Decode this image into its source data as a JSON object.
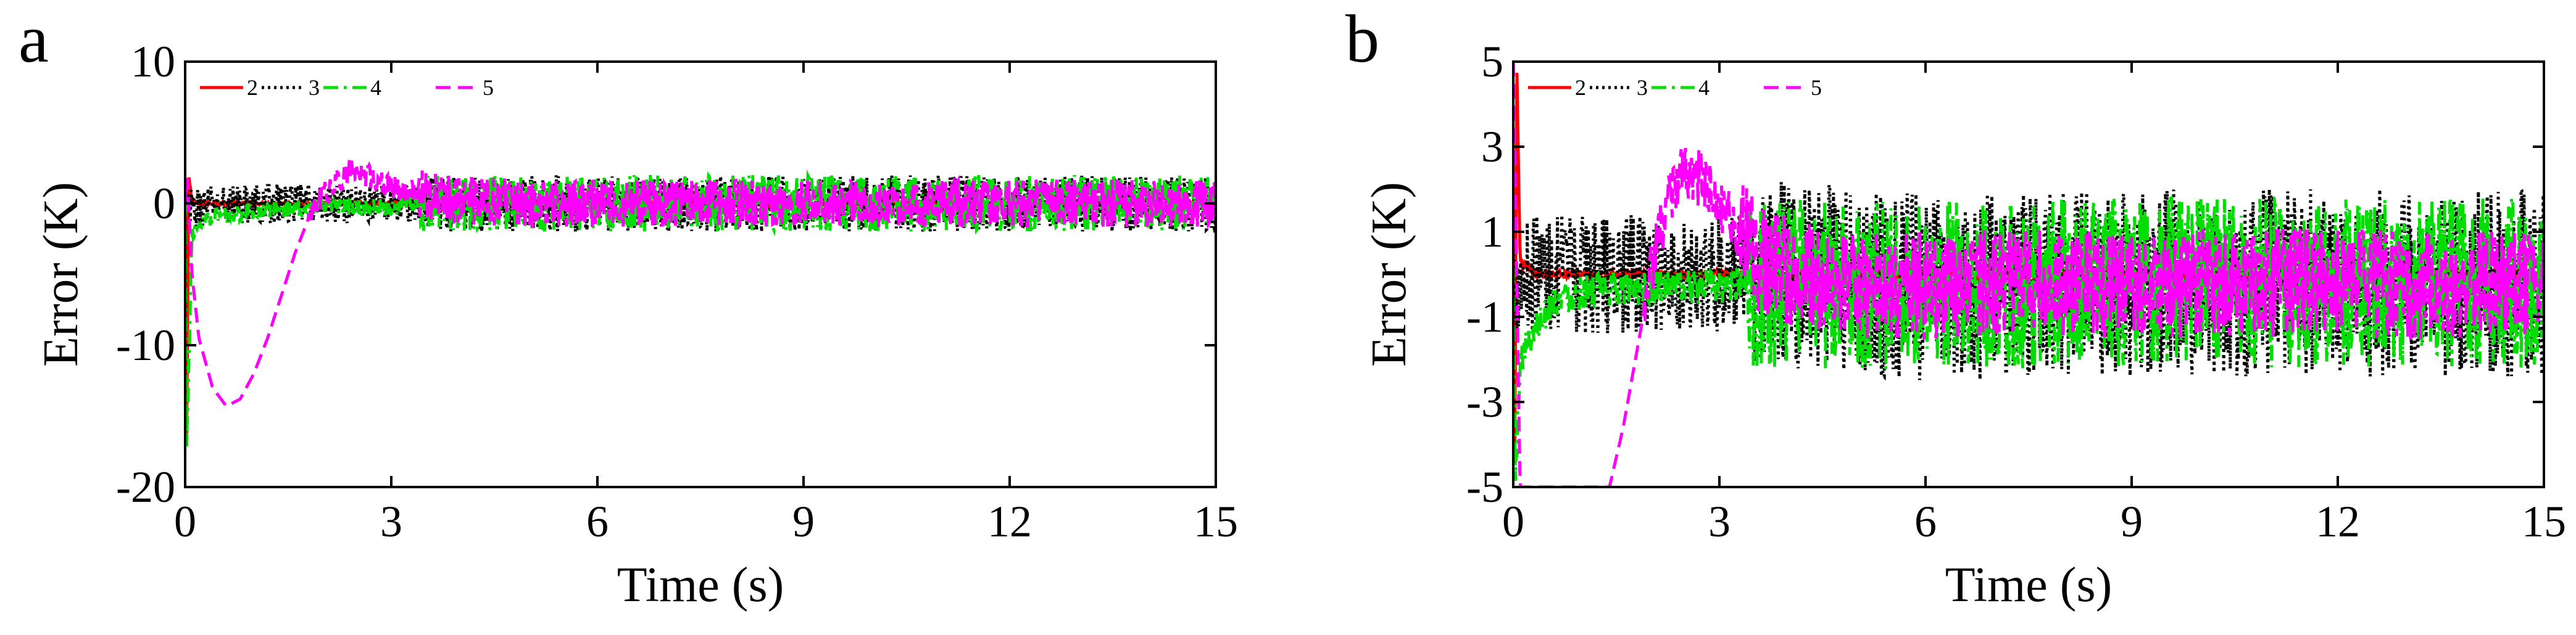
{
  "chart_data": [
    {
      "panel_label": "a",
      "type": "line",
      "xlabel": "Time (s)",
      "ylabel": "Error (K)",
      "xlim": [
        0,
        15
      ],
      "ylim": [
        -20,
        10
      ],
      "xticks": [
        0,
        3,
        6,
        9,
        12,
        15
      ],
      "yticks": [
        -20,
        -10,
        0,
        10
      ],
      "xtick_labels": [
        "0",
        "3",
        "6",
        "9",
        "12",
        "15"
      ],
      "ytick_labels": [
        "-20",
        "-10",
        "0",
        "10"
      ],
      "grid": false,
      "legend_position": "top-left",
      "series": [
        {
          "name": "2",
          "color": "#ff0000",
          "style": "solid",
          "x": [
            0,
            0.02,
            0.05,
            0.1,
            0.2,
            0.5,
            1,
            2,
            3,
            4,
            6,
            9,
            12,
            15
          ],
          "y": [
            0,
            -18,
            2,
            0.2,
            0,
            0,
            0,
            0,
            0,
            0,
            0,
            0,
            0,
            0
          ],
          "noise_band": [
            [
              0,
              15,
              0.1
            ]
          ]
        },
        {
          "name": "3",
          "color": "#000000",
          "style": "dotted",
          "x": [
            0,
            0.1,
            0.5,
            1,
            2,
            3,
            4,
            6,
            9,
            12,
            15
          ],
          "y": [
            0,
            -0.5,
            0,
            0,
            0,
            0,
            0,
            0,
            0,
            0,
            0
          ],
          "noise_band": [
            [
              0,
              3.5,
              1.4
            ],
            [
              3.5,
              15,
              2.0
            ]
          ]
        },
        {
          "name": "4",
          "color": "#00dd00",
          "style": "dashdot",
          "x": [
            0,
            0.02,
            0.1,
            0.3,
            1,
            2,
            3,
            3.4,
            4,
            6,
            9,
            12,
            15
          ],
          "y": [
            0,
            -18,
            -2,
            -1,
            -0.5,
            -0.3,
            -0.3,
            0,
            0,
            0,
            0,
            0,
            0
          ],
          "noise_band": [
            [
              0,
              3.4,
              0.6
            ],
            [
              3.4,
              15,
              2.0
            ]
          ]
        },
        {
          "name": "5",
          "color": "#ff00ff",
          "style": "dashed",
          "x": [
            0,
            0.03,
            0.1,
            0.2,
            0.4,
            0.6,
            0.8,
            1.0,
            1.2,
            1.4,
            1.6,
            1.8,
            2.0,
            2.2,
            2.4,
            2.6,
            2.8,
            3.0,
            3.3,
            3.6,
            4.0,
            5.0,
            6.0,
            9.0,
            12.0,
            15.0
          ],
          "y": [
            0,
            2,
            -5,
            -9.5,
            -13,
            -14.3,
            -13.8,
            -12,
            -9.5,
            -6.5,
            -3.5,
            -1.0,
            0.5,
            1.5,
            2.2,
            2.1,
            1.7,
            1.2,
            0.8,
            0.5,
            0.2,
            0,
            0,
            0,
            0,
            0
          ],
          "noise_band": [
            [
              1.8,
              3.4,
              0.9
            ],
            [
              3.4,
              15,
              1.7
            ]
          ]
        }
      ]
    },
    {
      "panel_label": "b",
      "type": "line",
      "xlabel": "Time (s)",
      "ylabel": "Error (K)",
      "xlim": [
        0,
        15
      ],
      "ylim": [
        -5,
        5
      ],
      "xticks": [
        0,
        3,
        6,
        9,
        12,
        15
      ],
      "yticks": [
        -5,
        -3,
        -1,
        1,
        3,
        5
      ],
      "xtick_labels": [
        "0",
        "3",
        "6",
        "9",
        "12",
        "15"
      ],
      "ytick_labels": [
        "-5",
        "-3",
        "-1",
        "1",
        "3",
        "5"
      ],
      "grid": false,
      "legend_position": "top-left",
      "series": [
        {
          "name": "2",
          "color": "#ff0000",
          "style": "solid",
          "x": [
            0,
            0.02,
            0.05,
            0.1,
            0.3,
            1,
            3,
            6,
            9,
            12,
            15
          ],
          "y": [
            0,
            -5,
            5,
            0.3,
            0,
            0,
            0,
            0,
            0,
            0,
            0
          ],
          "noise_band": [
            [
              0,
              15,
              0.1
            ]
          ]
        },
        {
          "name": "3",
          "color": "#000000",
          "style": "dotted",
          "x": [
            0,
            0.1,
            0.5,
            1,
            2,
            3,
            4,
            6,
            9,
            12,
            15
          ],
          "y": [
            0,
            0,
            0,
            0,
            0,
            0,
            0,
            -0.3,
            -0.2,
            -0.2,
            -0.2
          ],
          "noise_band": [
            [
              0,
              3.5,
              1.4
            ],
            [
              3.5,
              15,
              2.2
            ]
          ]
        },
        {
          "name": "4",
          "color": "#00dd00",
          "style": "dashdot",
          "x": [
            0,
            0.03,
            0.1,
            0.3,
            0.6,
            1,
            2,
            3,
            3.4,
            4,
            6,
            9,
            12,
            15
          ],
          "y": [
            0,
            -5,
            -2,
            -1.3,
            -0.6,
            -0.4,
            -0.3,
            -0.3,
            -0.2,
            -0.2,
            -0.3,
            -0.2,
            -0.2,
            -0.2
          ],
          "noise_band": [
            [
              0,
              3.4,
              0.4
            ],
            [
              3.4,
              15,
              2.0
            ]
          ]
        },
        {
          "name": "5",
          "color": "#ff00ff",
          "style": "dashed",
          "x": [
            0,
            0.1,
            1.4,
            1.6,
            1.8,
            2.0,
            2.2,
            2.4,
            2.6,
            2.8,
            3.0,
            3.3,
            3.6,
            4.0,
            5.0,
            6.0,
            9.0,
            12.0,
            15.0
          ],
          "y": [
            5,
            -5,
            -5,
            -3.6,
            -1.8,
            0.0,
            1.4,
            2.2,
            2.4,
            2.1,
            1.6,
            0.9,
            0.4,
            0.1,
            -0.2,
            -0.3,
            -0.2,
            -0.2,
            -0.3
          ],
          "noise_band": [
            [
              1.9,
              3.3,
              0.7
            ],
            [
              3.3,
              15,
              1.3
            ]
          ]
        }
      ]
    }
  ]
}
